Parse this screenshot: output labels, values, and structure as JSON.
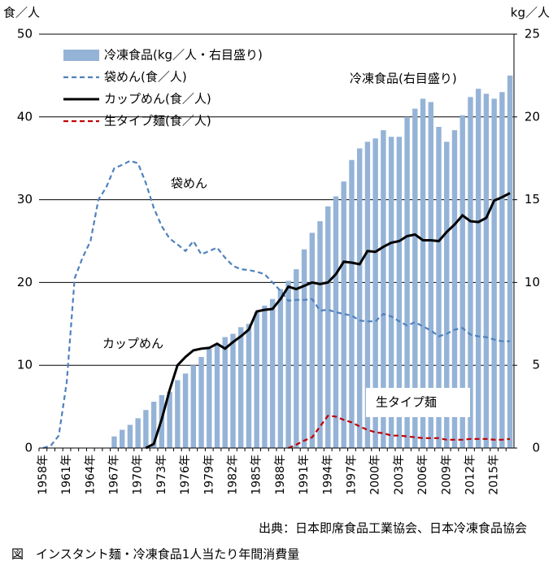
{
  "chart_data": {
    "type": "bar-line",
    "y_unit": "食／人",
    "y2_unit": "kg／人",
    "source": "出典：日本即席食品工業協会、日本冷凍食品協会",
    "caption": "図　インスタント麺・冷凍食品1人当たり年間消費量",
    "annotations": [
      "冷凍食品(右目盛り)",
      "袋めん",
      "カップめん",
      "生タイプ麺"
    ],
    "categories": [
      "1958年",
      null,
      null,
      "1961年",
      null,
      null,
      "1964年",
      null,
      null,
      "1967年",
      null,
      null,
      "1970年",
      null,
      null,
      "1973年",
      null,
      null,
      "1976年",
      null,
      null,
      "1979年",
      null,
      null,
      "1982年",
      null,
      null,
      "1985年",
      null,
      null,
      "1988年",
      null,
      null,
      "1991年",
      null,
      null,
      "1994年",
      null,
      null,
      "1997年",
      null,
      null,
      "2000年",
      null,
      null,
      "2003年",
      null,
      null,
      "2006年",
      null,
      null,
      "2009年",
      null,
      null,
      "2012年",
      null,
      null,
      "2015年",
      null,
      null
    ],
    "series": [
      {
        "name": "冷凍食品(kg／人・右目盛り)",
        "type": "bar",
        "axis": "y2",
        "color": "#95b3d7",
        "values": [
          null,
          null,
          null,
          null,
          null,
          null,
          null,
          null,
          null,
          0.7,
          1.1,
          1.4,
          1.8,
          2.3,
          2.8,
          3.2,
          3.4,
          4.1,
          4.5,
          5.0,
          5.5,
          6.0,
          6.3,
          6.7,
          6.9,
          7.3,
          7.5,
          8.2,
          8.6,
          9.0,
          9.6,
          10.1,
          10.8,
          12.0,
          13.0,
          13.7,
          14.6,
          15.2,
          16.1,
          17.4,
          18.1,
          18.5,
          18.7,
          19.2,
          18.8,
          18.8,
          20.0,
          20.5,
          21.1,
          20.9,
          19.4,
          18.5,
          19.2,
          20.1,
          21.2,
          21.7,
          21.4,
          21.1,
          21.5,
          22.5
        ]
      },
      {
        "name": "袋めん(食／人)",
        "type": "line",
        "dash": "dashed",
        "color": "#4f81bd",
        "values": [
          0,
          0.3,
          1.5,
          8,
          20.5,
          23,
          25,
          30,
          31.5,
          33.8,
          34.2,
          34.7,
          34.4,
          32,
          29,
          26.8,
          25.3,
          24.6,
          23.8,
          25,
          23.4,
          23.8,
          24.2,
          23,
          22,
          21.6,
          21.5,
          21.3,
          21,
          20,
          19,
          17.8,
          17.9,
          17.9,
          18,
          16.6,
          16.7,
          16.4,
          16.2,
          16,
          15.4,
          15.3,
          15.3,
          16.2,
          15.9,
          15.3,
          14.8,
          15.2,
          14.7,
          14.2,
          13.5,
          13.8,
          14.3,
          14.5,
          13.7,
          13.5,
          13.4,
          13.1,
          12.9,
          12.9
        ]
      },
      {
        "name": "カップめん(食／人)",
        "type": "line",
        "dash": "solid",
        "color": "#000000",
        "values": [
          null,
          null,
          null,
          null,
          null,
          null,
          null,
          null,
          null,
          null,
          null,
          null,
          null,
          0,
          0.5,
          3.5,
          7,
          10,
          11,
          11.8,
          12,
          12.1,
          12.6,
          12,
          12.8,
          13.5,
          14.3,
          16.5,
          16.7,
          16.8,
          18,
          19.5,
          19.2,
          19.6,
          20,
          19.8,
          20,
          21,
          22.5,
          22.4,
          22.2,
          23.8,
          23.7,
          24.3,
          24.8,
          25,
          25.6,
          25.8,
          25.1,
          25.1,
          25,
          26.1,
          27,
          28.1,
          27.4,
          27.3,
          27.8,
          29.9,
          30.3,
          30.8
        ]
      },
      {
        "name": "生タイプ麺(食／人)",
        "type": "line",
        "dash": "dashed",
        "color": "#c00000",
        "values": [
          null,
          null,
          null,
          null,
          null,
          null,
          null,
          null,
          null,
          null,
          null,
          null,
          null,
          null,
          null,
          null,
          null,
          null,
          null,
          null,
          null,
          null,
          null,
          null,
          null,
          null,
          null,
          null,
          null,
          null,
          null,
          0,
          0.4,
          0.9,
          1.3,
          2.6,
          3.9,
          3.8,
          3.4,
          3.1,
          2.6,
          2.2,
          1.9,
          1.8,
          1.5,
          1.5,
          1.4,
          1.3,
          1.2,
          1.2,
          1.2,
          1.0,
          1.0,
          1.0,
          1.1,
          1.1,
          1.1,
          1.0,
          1.0,
          1.1
        ]
      }
    ],
    "ylim": [
      0,
      50
    ],
    "yticks": [
      0,
      10,
      20,
      30,
      40,
      50
    ],
    "y2lim": [
      0,
      25
    ],
    "y2ticks": [
      0,
      5,
      10,
      15,
      20,
      25
    ],
    "grid": true
  }
}
